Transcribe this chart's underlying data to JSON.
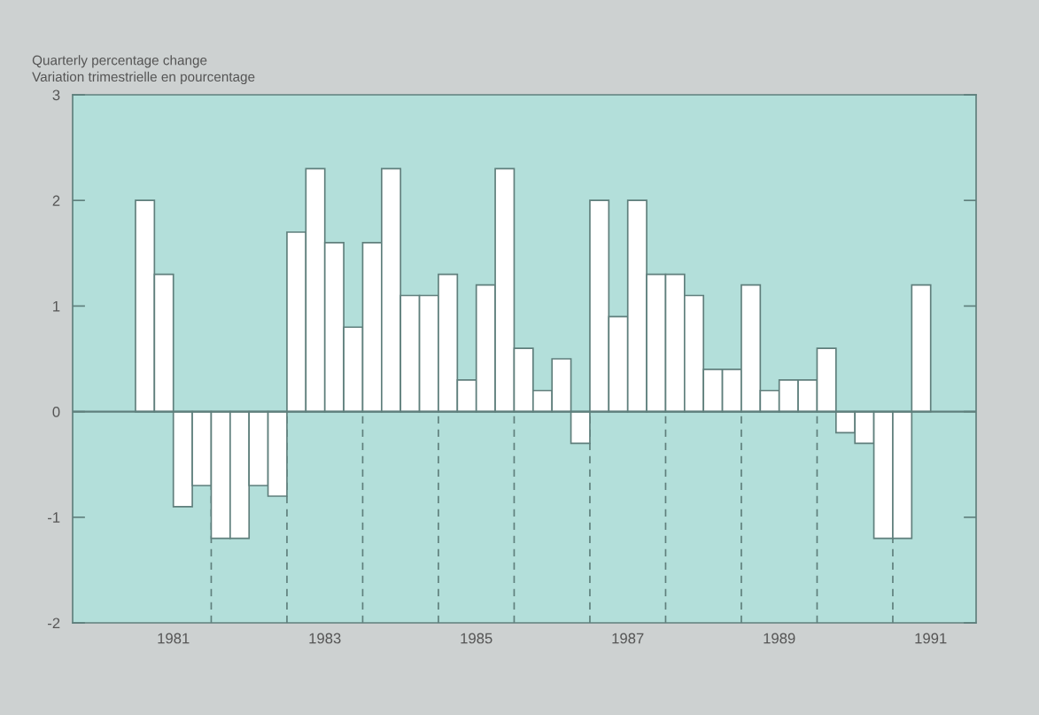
{
  "chart_data": {
    "type": "bar",
    "ylabel": "Quarterly percentage change\nVariation trimestrielle en pourcentage",
    "x": [
      1981.125,
      1981.375,
      1981.625,
      1981.875,
      1982.125,
      1982.375,
      1982.625,
      1982.875,
      1983.125,
      1983.375,
      1983.625,
      1983.875,
      1984.125,
      1984.375,
      1984.625,
      1984.875,
      1985.125,
      1985.375,
      1985.625,
      1985.875,
      1986.125,
      1986.375,
      1986.625,
      1986.875,
      1987.125,
      1987.375,
      1987.625,
      1987.875,
      1988.125,
      1988.375,
      1988.625,
      1988.875,
      1989.125,
      1989.375,
      1989.625,
      1989.875,
      1990.125,
      1990.375,
      1990.625,
      1990.875,
      1991.125,
      1991.375
    ],
    "values": [
      2.0,
      1.3,
      -0.9,
      -0.7,
      -1.2,
      -1.2,
      -0.7,
      -0.8,
      1.7,
      2.3,
      1.6,
      0.8,
      1.6,
      2.3,
      1.1,
      1.1,
      1.3,
      0.3,
      1.2,
      2.3,
      0.6,
      0.2,
      0.5,
      -0.3,
      2.0,
      0.9,
      2.0,
      1.3,
      1.3,
      1.1,
      0.4,
      0.4,
      1.2,
      0.2,
      0.3,
      0.3,
      0.6,
      -0.2,
      -0.3,
      -1.2,
      -1.2,
      1.2
    ],
    "color": "#ffffff",
    "xlim": [
      1980.17,
      1992.1
    ],
    "xticks": [
      {
        "value": 1981.5,
        "label": "1981"
      },
      {
        "value": 1983.5,
        "label": "1983"
      },
      {
        "value": 1985.5,
        "label": "1985"
      },
      {
        "value": 1987.5,
        "label": "1987"
      },
      {
        "value": 1989.5,
        "label": "1989"
      },
      {
        "value": 1991.5,
        "label": "1991"
      }
    ],
    "ylim": [
      -2,
      3
    ],
    "yticks": [
      -2,
      -1,
      0,
      1,
      2,
      3
    ],
    "ref_lines": [
      {
        "axis": "y",
        "value": 0,
        "color": "#5f7f7c",
        "line_style": "solid"
      },
      {
        "axis": "x",
        "value": 1982,
        "color": "#5f7f7c",
        "line_style": "dashed"
      },
      {
        "axis": "x",
        "value": 1983,
        "color": "#5f7f7c",
        "line_style": "dashed"
      },
      {
        "axis": "x",
        "value": 1984,
        "color": "#5f7f7c",
        "line_style": "dashed"
      },
      {
        "axis": "x",
        "value": 1985,
        "color": "#5f7f7c",
        "line_style": "dashed"
      },
      {
        "axis": "x",
        "value": 1986,
        "color": "#5f7f7c",
        "line_style": "dashed"
      },
      {
        "axis": "x",
        "value": 1987,
        "color": "#5f7f7c",
        "line_style": "dashed"
      },
      {
        "axis": "x",
        "value": 1988,
        "color": "#5f7f7c",
        "line_style": "dashed"
      },
      {
        "axis": "x",
        "value": 1989,
        "color": "#5f7f7c",
        "line_style": "dashed"
      },
      {
        "axis": "x",
        "value": 1990,
        "color": "#5f7f7c",
        "line_style": "dashed"
      },
      {
        "axis": "x",
        "value": 1991,
        "color": "#5f7f7c",
        "line_style": "dashed"
      }
    ],
    "grid": false
  }
}
